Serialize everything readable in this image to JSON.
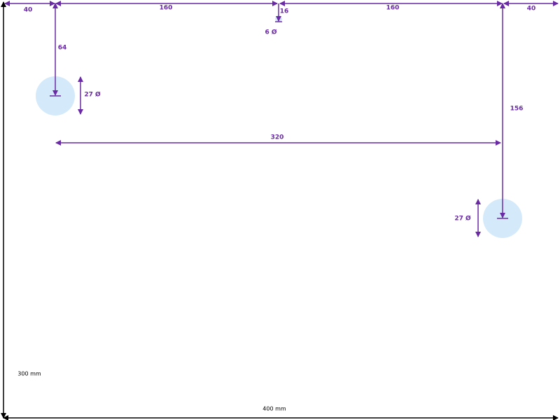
{
  "dimensions": {
    "left_margin": 40,
    "left_span": 160,
    "small_hole_offset": 16,
    "small_hole_diameter": "6 Ø",
    "right_span": 160,
    "right_margin": 40,
    "left_hole_offset": 64,
    "left_hole_diameter": "27 Ø",
    "right_hole_offset": 156,
    "hole_spacing": 320,
    "right_hole_diameter": "27 Ø",
    "height": "300 mm",
    "width": "400 mm"
  }
}
